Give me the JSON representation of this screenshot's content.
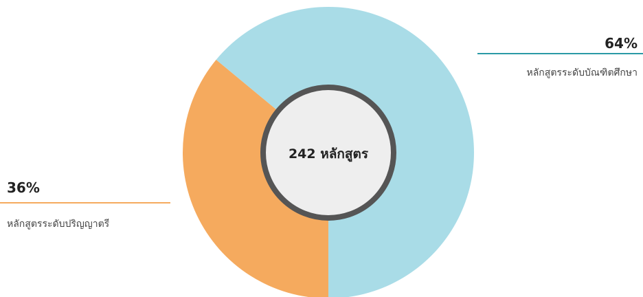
{
  "chart_data": {
    "type": "donut",
    "center_label": "242 หลักสูตร",
    "categories": [
      "หลักสูตรระดับปริญญาตรี",
      "หลักสูตรระดับบัณฑิตศึกษา"
    ],
    "values": [
      36,
      64
    ],
    "value_labels": [
      "36%",
      "64%"
    ],
    "colors": [
      "#f5aa5e",
      "#a9dce7"
    ]
  }
}
